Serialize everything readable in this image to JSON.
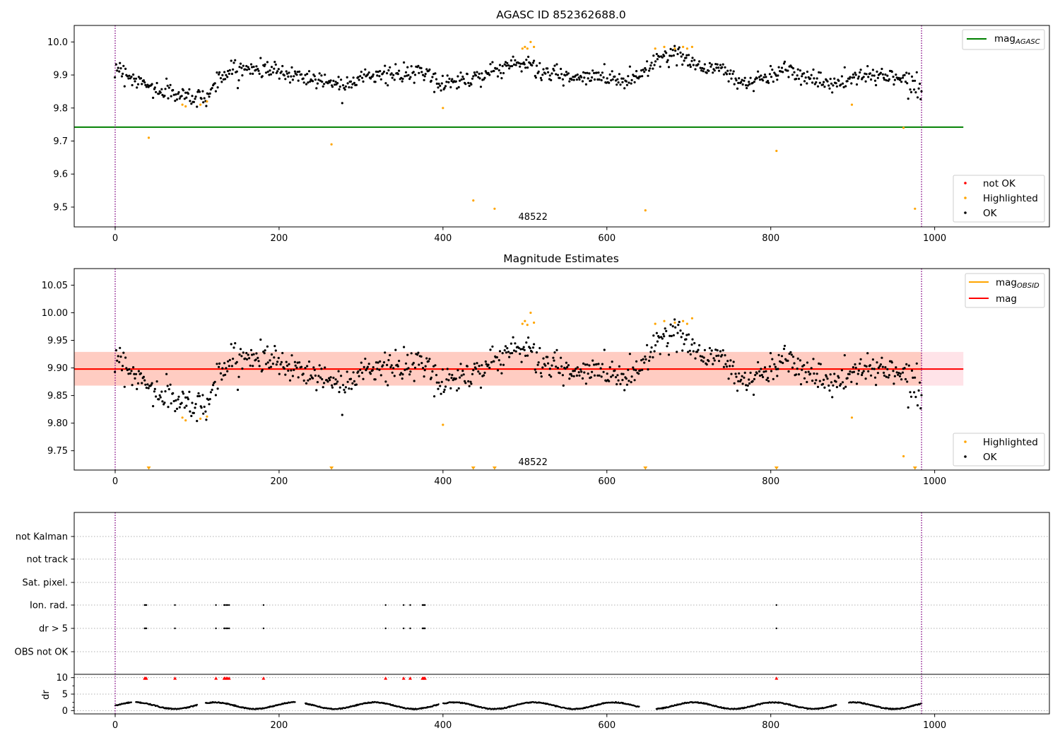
{
  "colors": {
    "ok": "#000000",
    "highlighted": "#ffa500",
    "not_ok": "#ff0000",
    "mag_agasc": "#008000",
    "mag_obsid": "#ffa500",
    "mag": "#ff0000",
    "obs_boundary": "#800080",
    "band_outer": "#ffc0cb",
    "band_inner": "#ffa07a"
  },
  "icons": [
    "legend-marker-dot",
    "legend-line",
    "triangle-down-marker",
    "triangle-up-marker"
  ],
  "chart_data": [
    {
      "type": "scatter",
      "title": "AGASC ID 852362688.0",
      "xlim": [
        -50,
        1140
      ],
      "ylim": [
        9.44,
        10.05
      ],
      "xticks": [
        0,
        200,
        400,
        600,
        800,
        1000
      ],
      "yticks": [
        9.5,
        9.6,
        9.7,
        9.8,
        9.9,
        10.0
      ],
      "x_tick_labels": [
        "0",
        "200",
        "400",
        "600",
        "800",
        "1000"
      ],
      "y_tick_labels": [
        "9.5",
        "9.6",
        "9.7",
        "9.8",
        "9.9",
        "10.0"
      ],
      "obs_boundaries": [
        0,
        984
      ],
      "obsid_label": {
        "text": "48522",
        "x": 492,
        "y": 9.47
      },
      "mag_agasc_line": {
        "y": 9.742,
        "x_range": [
          -50,
          1035
        ]
      },
      "legend_lines": [
        {
          "name": "mag",
          "subscript": "AGASC"
        }
      ],
      "legend_markers": [
        {
          "name": "not OK"
        },
        {
          "name": "Highlighted"
        },
        {
          "name": "OK"
        }
      ],
      "ok_trend": {
        "x": [
          0,
          15,
          30,
          45,
          60,
          80,
          100,
          115,
          125,
          140,
          160,
          180,
          200,
          220,
          240,
          260,
          280,
          300,
          320,
          340,
          360,
          380,
          395,
          410,
          430,
          450,
          470,
          490,
          505,
          520,
          540,
          560,
          580,
          600,
          620,
          640,
          660,
          680,
          700,
          720,
          740,
          760,
          780,
          800,
          820,
          840,
          860,
          880,
          900,
          920,
          940,
          960,
          984
        ],
        "y": [
          9.93,
          9.9,
          9.88,
          9.86,
          9.85,
          9.84,
          9.83,
          9.84,
          9.89,
          9.91,
          9.92,
          9.92,
          9.91,
          9.9,
          9.89,
          9.88,
          9.87,
          9.9,
          9.9,
          9.9,
          9.9,
          9.91,
          9.87,
          9.88,
          9.89,
          9.9,
          9.92,
          9.94,
          9.93,
          9.91,
          9.9,
          9.89,
          9.89,
          9.9,
          9.88,
          9.9,
          9.95,
          9.96,
          9.95,
          9.92,
          9.92,
          9.88,
          9.88,
          9.9,
          9.92,
          9.9,
          9.88,
          9.87,
          9.89,
          9.9,
          9.9,
          9.89,
          9.86
        ]
      },
      "ok_noise": 0.018,
      "ok_count": 850,
      "highlighted_points": {
        "x": [
          41,
          82,
          86,
          104,
          112,
          264,
          400,
          437,
          463,
          497,
          500,
          503,
          507,
          511,
          647,
          659,
          670,
          683,
          693,
          698,
          704,
          807,
          899,
          962,
          976
        ],
        "y": [
          9.71,
          9.81,
          9.805,
          9.81,
          9.82,
          9.69,
          9.8,
          9.52,
          9.495,
          9.98,
          9.985,
          9.98,
          10.0,
          9.985,
          9.49,
          9.98,
          9.985,
          9.98,
          9.985,
          9.98,
          9.985,
          9.67,
          9.81,
          9.74,
          9.495
        ]
      }
    },
    {
      "type": "scatter",
      "title": "Magnitude Estimates",
      "xlim": [
        -50,
        1140
      ],
      "ylim": [
        9.715,
        10.08
      ],
      "xticks": [
        0,
        200,
        400,
        600,
        800,
        1000
      ],
      "yticks": [
        9.75,
        9.8,
        9.85,
        9.9,
        9.95,
        10.0,
        10.05
      ],
      "x_tick_labels": [
        "0",
        "200",
        "400",
        "600",
        "800",
        "1000"
      ],
      "y_tick_labels": [
        "9.75",
        "9.80",
        "9.85",
        "9.90",
        "9.95",
        "10.00",
        "10.05"
      ],
      "obs_boundaries": [
        0,
        984
      ],
      "obsid_label": {
        "text": "48522",
        "x": 492,
        "y": 9.729
      },
      "mag_line": {
        "y": 9.898,
        "x_range": [
          -50,
          1035
        ]
      },
      "mag_band_outer": {
        "y": [
          9.868,
          9.929
        ],
        "x_range": [
          -50,
          1035
        ]
      },
      "mag_obsid_line": {
        "y": 9.898,
        "x_range": [
          -50,
          984
        ]
      },
      "mag_obsid_band": {
        "y": [
          9.868,
          9.929
        ],
        "x_range": [
          -50,
          984
        ]
      },
      "legend_lines": [
        {
          "name": "mag",
          "subscript": "OBSID"
        },
        {
          "name": "mag",
          "subscript": ""
        }
      ],
      "legend_markers": [
        {
          "name": "Highlighted"
        },
        {
          "name": "OK"
        }
      ],
      "highlighted_points": {
        "x": [
          82,
          86,
          104,
          112,
          400,
          497,
          500,
          503,
          507,
          511,
          659,
          670,
          683,
          693,
          698,
          704,
          899,
          962
        ],
        "y": [
          9.81,
          9.805,
          9.808,
          9.812,
          9.797,
          9.98,
          9.985,
          9.978,
          10.0,
          9.982,
          9.98,
          9.985,
          9.982,
          9.985,
          9.98,
          9.99,
          9.81,
          9.74
        ]
      },
      "clipped_markers_x": [
        41,
        264,
        437,
        463,
        647,
        807,
        976
      ]
    },
    {
      "type": "scatter",
      "title": "",
      "xlim": [
        -50,
        1140
      ],
      "categories": [
        "not Kalman",
        "not track",
        "Sat. pixel.",
        "Ion. rad.",
        "dr > 5",
        "OBS not OK"
      ],
      "flag_points_x": [
        36,
        37,
        38,
        73,
        123,
        133,
        134,
        136,
        137,
        139,
        181,
        330,
        352,
        360,
        375,
        376,
        377,
        378,
        807
      ],
      "flagged_categories": [
        "Ion. rad.",
        "dr > 5"
      ],
      "dr_ylabel": "dr",
      "dr_ylim": [
        -1,
        11
      ],
      "dr_yticks": [
        0,
        5,
        10
      ],
      "dr_ytick_labels": [
        "0",
        "5",
        "10"
      ],
      "x_tick_labels": [
        "0",
        "200",
        "400",
        "600",
        "800",
        "1000"
      ],
      "xticks": [
        0,
        200,
        400,
        600,
        800,
        1000
      ],
      "obs_boundaries": [
        0,
        984
      ],
      "dr_gaps_x": [
        [
          20,
          25
        ],
        [
          100,
          110
        ],
        [
          220,
          232
        ],
        [
          395,
          400
        ],
        [
          640,
          660
        ],
        [
          880,
          895
        ]
      ],
      "dr_wave_mean": 1.5,
      "dr_wave_amplitude": 1.0
    }
  ]
}
